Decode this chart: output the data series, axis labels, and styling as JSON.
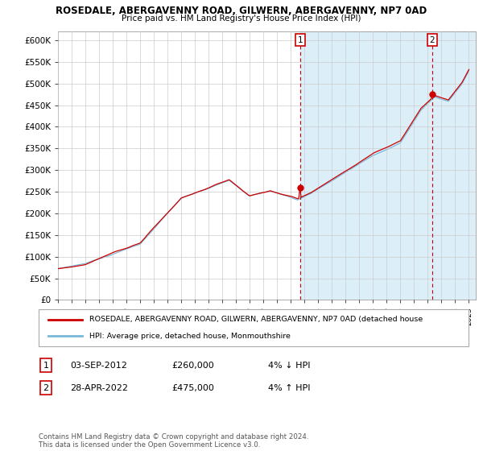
{
  "title": "ROSEDALE, ABERGAVENNY ROAD, GILWERN, ABERGAVENNY, NP7 0AD",
  "subtitle": "Price paid vs. HM Land Registry's House Price Index (HPI)",
  "legend_line1": "ROSEDALE, ABERGAVENNY ROAD, GILWERN, ABERGAVENNY, NP7 0AD (detached house",
  "legend_line2": "HPI: Average price, detached house, Monmouthshire",
  "annotation1_date": "03-SEP-2012",
  "annotation1_price": "£260,000",
  "annotation1_hpi": "4% ↓ HPI",
  "annotation2_date": "28-APR-2022",
  "annotation2_price": "£475,000",
  "annotation2_hpi": "4% ↑ HPI",
  "footnote": "Contains HM Land Registry data © Crown copyright and database right 2024.\nThis data is licensed under the Open Government Licence v3.0.",
  "hpi_color": "#7ab8d9",
  "price_color": "#cc0000",
  "shade_color": "#dceef8",
  "annotation_color": "#cc0000",
  "bg_color": "#ffffff",
  "grid_color": "#cccccc",
  "ylim_min": 0,
  "ylim_max": 620000,
  "ytick_step": 50000,
  "sale1_year": 2012.67,
  "sale1_price": 260000,
  "sale2_year": 2022.33,
  "sale2_price": 475000
}
